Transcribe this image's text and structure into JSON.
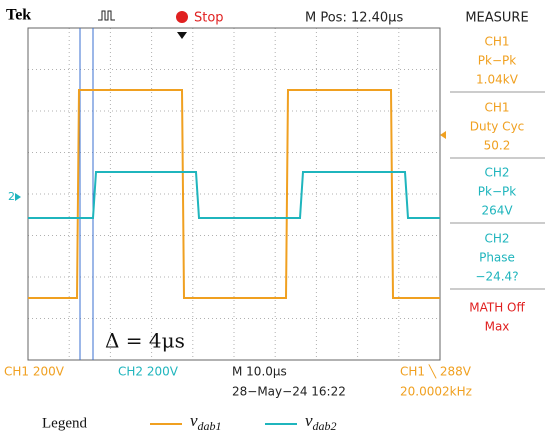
{
  "header": {
    "brand": "Tek",
    "status": "Stop",
    "position": "M Pos: 12.40µs",
    "menu": "MEASURE"
  },
  "measurements": [
    {
      "source": "CH1",
      "name": "Pk−Pk",
      "value": "1.04kV"
    },
    {
      "source": "CH1",
      "name": "Duty Cyc",
      "value": "50.2"
    },
    {
      "source": "CH2",
      "name": "Pk−Pk",
      "value": "264V"
    },
    {
      "source": "CH2",
      "name": "Phase",
      "value": "−24.4?"
    },
    {
      "source": "MATH Off",
      "name": "Max"
    }
  ],
  "channel_marker": "2",
  "annotation": "Δ = 4μs",
  "footer": {
    "ch1_scale": "CH1  200V",
    "ch2_scale": "CH2  200V",
    "timebase": "M 10.0µs",
    "date": "28−May−24 16:22",
    "trigger": "CH1 ╲ 288V",
    "frequency": "20.0002kHz"
  },
  "legend": {
    "title": "Legend",
    "items": [
      {
        "symbol": "v",
        "subscript": "dab1"
      },
      {
        "symbol": "v",
        "subscript": "dab2"
      }
    ]
  }
}
